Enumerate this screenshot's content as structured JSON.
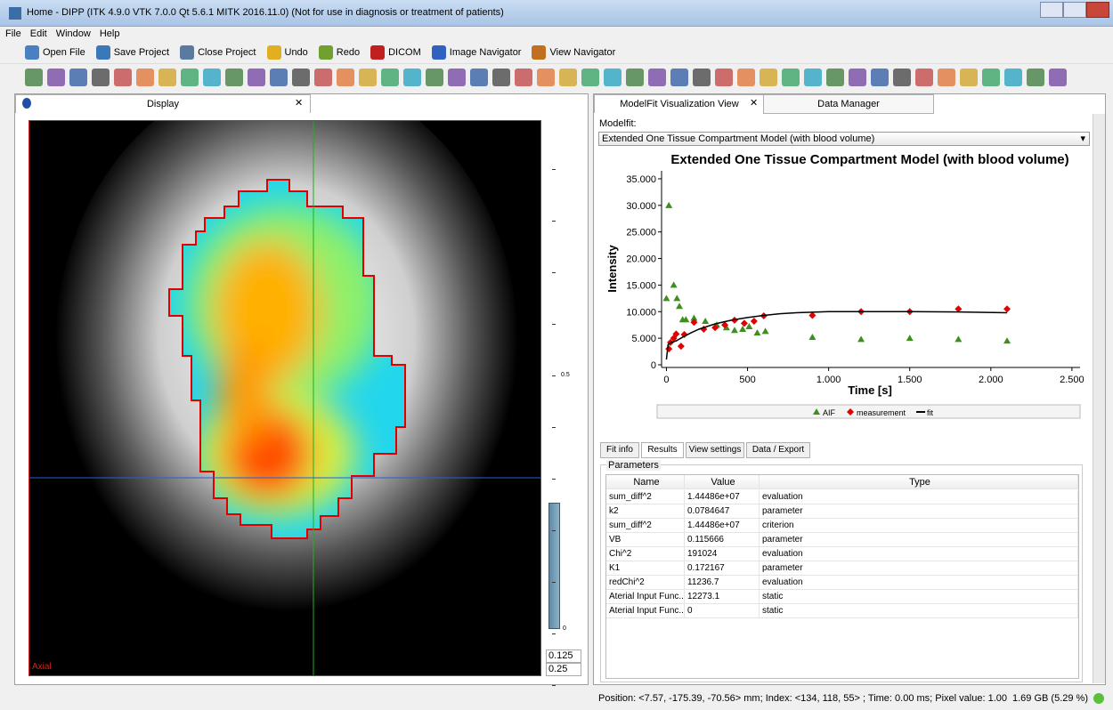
{
  "window": {
    "title": "Home - DIPP (ITK 4.9.0  VTK 7.0.0  Qt 5.6.1  MITK 2016.11.0) (Not for use in diagnosis or treatment of patients)"
  },
  "menu": [
    "File",
    "Edit",
    "Window",
    "Help"
  ],
  "toolbar": [
    "Open File",
    "Save Project",
    "Close Project",
    "Undo",
    "Redo",
    "DICOM",
    "Image Navigator",
    "View Navigator"
  ],
  "display": {
    "tab": "Display",
    "orientation": "Axial",
    "scale_labels": [
      "0.5",
      "0"
    ],
    "level_inputs": [
      "0.125",
      "0.25"
    ]
  },
  "right_tabs": [
    "ModelFit Visualization View",
    "Data Manager"
  ],
  "modelfit": {
    "label": "Modelfit:",
    "selected": "Extended One Tissue Compartment Model (with blood volume)"
  },
  "chart_data": {
    "type": "scatter",
    "title": "Extended One Tissue Compartment Model (with blood volume)",
    "x_label": "Time [s]",
    "y_label": "Intensity",
    "xlim": [
      -30,
      2550
    ],
    "ylim": [
      -500,
      36500
    ],
    "xticks": [
      0,
      500,
      {
        "value": 1000,
        "label": "1.000"
      },
      {
        "value": 1500,
        "label": "1.500"
      },
      {
        "value": 2000,
        "label": "2.000"
      },
      {
        "value": 2500,
        "label": "2.500"
      }
    ],
    "yticks": [
      0,
      {
        "value": 5000,
        "label": "5.000"
      },
      {
        "value": 10000,
        "label": "10.000"
      },
      {
        "value": 15000,
        "label": "15.000"
      },
      {
        "value": 20000,
        "label": "20.000"
      },
      {
        "value": 25000,
        "label": "25.000"
      },
      {
        "value": 30000,
        "label": "30.000"
      },
      {
        "value": 35000,
        "label": "35.000"
      }
    ],
    "series": [
      {
        "name": "AIF",
        "color": "#3f8f1f",
        "marker": "triangle",
        "x": [
          0,
          15,
          45,
          65,
          80,
          100,
          120,
          170,
          240,
          310,
          370,
          420,
          470,
          510,
          560,
          610,
          900,
          1200,
          1500,
          1800,
          2100
        ],
        "values": [
          12500,
          30000,
          15000,
          12500,
          11000,
          8500,
          8500,
          8800,
          8200,
          7500,
          7000,
          6500,
          6700,
          7200,
          6000,
          6300,
          5200,
          4800,
          5000,
          4800,
          4500
        ]
      },
      {
        "name": "measurement",
        "color": "#e00000",
        "marker": "diamond",
        "x": [
          15,
          25,
          45,
          60,
          90,
          110,
          170,
          230,
          300,
          360,
          420,
          480,
          540,
          600,
          900,
          1200,
          1500,
          1800,
          2100
        ],
        "values": [
          3000,
          4200,
          5000,
          5800,
          3500,
          5700,
          8000,
          6700,
          7000,
          7500,
          8400,
          7800,
          8200,
          9200,
          9300,
          10000,
          10000,
          10500,
          10500
        ]
      },
      {
        "name": "fit",
        "color": "#000000",
        "marker": "line",
        "x": [
          0,
          10,
          30,
          60,
          100,
          150,
          200,
          300,
          400,
          500,
          600,
          700,
          800,
          900,
          1000,
          1200,
          1500,
          1800,
          2100
        ],
        "values": [
          1000,
          3800,
          4200,
          4500,
          5200,
          6000,
          6700,
          7700,
          8400,
          8900,
          9300,
          9600,
          9800,
          9900,
          10000,
          10000,
          10000,
          9950,
          9800
        ]
      }
    ]
  },
  "result_tabs": [
    "Fit info",
    "Results",
    "View settings",
    "Data / Export"
  ],
  "parameters": {
    "title": "Parameters",
    "columns": [
      "Name",
      "Value",
      "Type"
    ],
    "rows": [
      [
        "sum_diff^2",
        "1.44486e+07",
        "evaluation"
      ],
      [
        "k2",
        "0.0784647",
        "parameter"
      ],
      [
        "sum_diff^2",
        "1.44486e+07",
        "criterion"
      ],
      [
        "VB",
        "0.115666",
        "parameter"
      ],
      [
        "Chi^2",
        "191024",
        "evaluation"
      ],
      [
        "K1",
        "0.172167",
        "parameter"
      ],
      [
        "redChi^2",
        "11236.7",
        "evaluation"
      ],
      [
        "Aterial Input Func...",
        "12273.1",
        "static"
      ],
      [
        "Aterial Input Func...",
        "0",
        "static"
      ]
    ]
  },
  "status": {
    "position": "Position: <7.57, -175.39, -70.56> mm; Index: <134, 118, 55> ; Time: 0.00 ms; Pixel value: 1.00",
    "memory": "1.69 GB (5.29 %)"
  }
}
